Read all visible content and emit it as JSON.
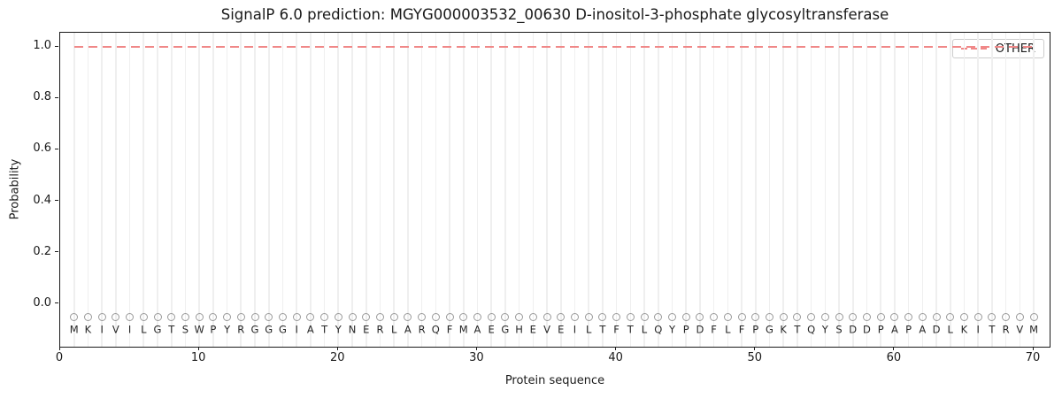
{
  "chart_data": {
    "type": "line",
    "title": "SignalP 6.0 prediction: MGYG000003532_00630 D-inositol-3-phosphate glycosyltransferase",
    "xlabel": "Protein sequence",
    "ylabel": "Probability",
    "x_ticks": [
      0,
      10,
      20,
      30,
      40,
      50,
      60,
      70
    ],
    "y_ticks": [
      0.0,
      0.2,
      0.4,
      0.6,
      0.8,
      1.0
    ],
    "xlim": [
      0,
      71.27
    ],
    "ylim": [
      -0.172,
      1.055
    ],
    "grid": {
      "vertical_per_residue": true,
      "color": "#efefef"
    },
    "sequence": "MKIVILGTSWPYRGGGIATYNERLARQFMAEGHEVEILTFTLQYPDFLFPGKTQYSDDPAPADLKITRVM",
    "sequence_letters_y": -0.101,
    "series": [
      {
        "name": "OTHER",
        "style": "dashed",
        "color": "#f08888",
        "x_start": 1,
        "values": [
          1.0,
          1.0,
          1.0,
          1.0,
          1.0,
          1.0,
          1.0,
          1.0,
          1.0,
          1.0,
          1.0,
          1.0,
          1.0,
          1.0,
          1.0,
          1.0,
          1.0,
          1.0,
          1.0,
          1.0,
          1.0,
          1.0,
          1.0,
          1.0,
          1.0,
          1.0,
          1.0,
          1.0,
          1.0,
          1.0,
          1.0,
          1.0,
          1.0,
          1.0,
          1.0,
          1.0,
          1.0,
          1.0,
          1.0,
          1.0,
          1.0,
          1.0,
          1.0,
          1.0,
          1.0,
          1.0,
          1.0,
          1.0,
          1.0,
          1.0,
          1.0,
          1.0,
          1.0,
          1.0,
          1.0,
          1.0,
          1.0,
          1.0,
          1.0,
          1.0,
          1.0,
          1.0,
          1.0,
          1.0,
          1.0,
          1.0,
          1.0,
          1.0,
          1.0,
          1.0
        ]
      }
    ],
    "residue_markers": {
      "shape": "open-circle",
      "color": "#9a9a9a",
      "y": -0.05
    },
    "legend": {
      "position": "upper-right",
      "entries": [
        "OTHER"
      ]
    },
    "colors": {
      "axis": "#1a1a1a",
      "letters": "#262626",
      "background": "#ffffff"
    }
  }
}
